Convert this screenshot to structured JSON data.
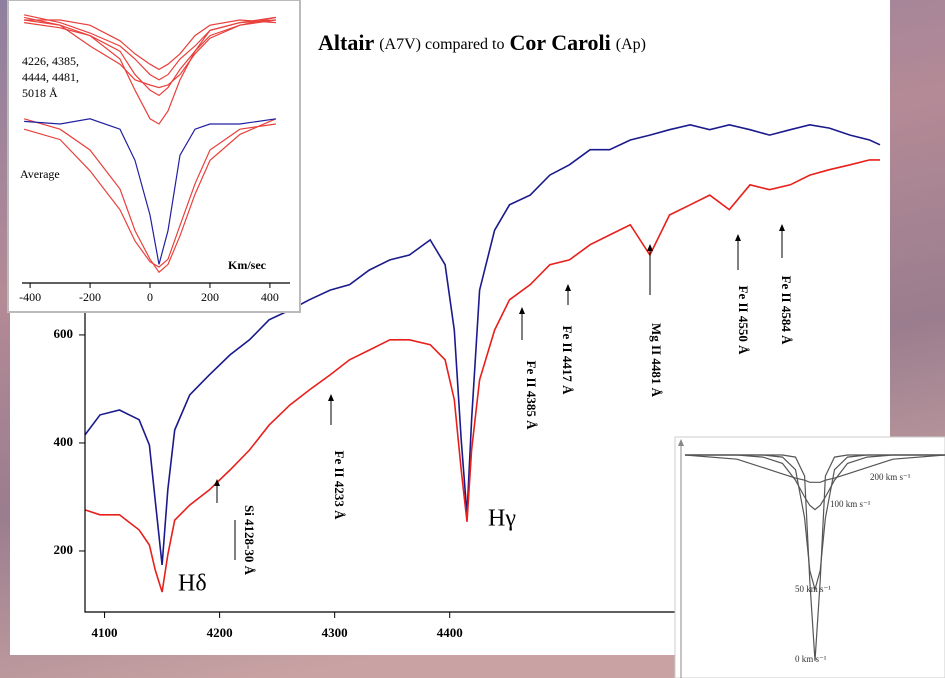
{
  "chart_data": [
    {
      "type": "line",
      "title_parts": [
        "Altair",
        "(A7V) compared to",
        "Cor Caroli",
        "(Ap)"
      ],
      "x": [
        4083,
        4096,
        4113,
        4130,
        4139,
        4144,
        4150,
        4155,
        4161,
        4174,
        4191,
        4209,
        4226,
        4243,
        4261,
        4278,
        4296,
        4313,
        4330,
        4348,
        4365,
        4383,
        4396,
        4404,
        4410,
        4415,
        4419,
        4426,
        4439,
        4452,
        4470,
        4487,
        4504,
        4522,
        4539,
        4557,
        4574,
        4591,
        4609,
        4626,
        4643,
        4661,
        4678,
        4696,
        4713,
        4730,
        4748,
        4765,
        4774
      ],
      "series": [
        {
          "color": "#1a1a8c",
          "values": [
            415,
            452,
            461,
            443,
            396,
            294,
            174,
            313,
            424,
            489,
            526,
            563,
            591,
            628,
            646,
            665,
            683,
            693,
            720,
            739,
            748,
            776,
            730,
            609,
            406,
            267,
            443,
            683,
            794,
            841,
            859,
            896,
            915,
            943,
            943,
            961,
            970,
            980,
            989,
            980,
            989,
            980,
            970,
            980,
            989,
            983,
            970,
            961,
            952
          ]
        },
        {
          "color": "#e8201c",
          "values": [
            276,
            267,
            267,
            239,
            211,
            165,
            124,
            193,
            257,
            285,
            313,
            350,
            387,
            433,
            470,
            498,
            526,
            554,
            572,
            591,
            591,
            582,
            554,
            480,
            350,
            254,
            387,
            517,
            609,
            665,
            693,
            730,
            739,
            767,
            785,
            804,
            748,
            822,
            841,
            859,
            832,
            878,
            869,
            878,
            896,
            906,
            915,
            924,
            924
          ]
        }
      ],
      "xlim": [
        4083,
        4774
      ],
      "ylim": [
        87,
        1035
      ],
      "xticks": [
        4100,
        4200,
        4300,
        4400
      ],
      "yticks": [
        200,
        400,
        600
      ],
      "annotations": [
        "Hδ",
        "Hγ",
        "Si 4128-30 Å",
        "Fe II 4233 Å",
        "Fe II 4385 Å",
        "Fe II 4417 Å",
        "Mg II 4481 Å",
        "Fe II 4550 Å",
        "Fe II 4584 Å"
      ]
    },
    {
      "type": "line",
      "x": [
        -420,
        -300,
        -200,
        -100,
        -50,
        0,
        30,
        60,
        100,
        150,
        200,
        300,
        420
      ],
      "series": [
        {
          "color": "#e8403c",
          "values": [
            1.0,
            0.98,
            0.94,
            0.85,
            0.73,
            0.62,
            0.6,
            0.65,
            0.77,
            0.88,
            0.96,
            0.99,
            1.0
          ]
        },
        {
          "color": "#e8403c",
          "values": [
            0.99,
            0.97,
            0.94,
            0.88,
            0.79,
            0.73,
            0.71,
            0.74,
            0.81,
            0.88,
            0.94,
            0.98,
            1.01
          ]
        },
        {
          "color": "#e8403c",
          "values": [
            1.02,
            0.99,
            0.95,
            0.9,
            0.85,
            0.79,
            0.77,
            0.79,
            0.85,
            0.9,
            0.96,
            0.99,
            1.01
          ]
        },
        {
          "color": "#e8403c",
          "values": [
            1.0,
            1.0,
            0.98,
            0.92,
            0.87,
            0.83,
            0.81,
            0.83,
            0.87,
            0.94,
            0.98,
            1.0,
            0.99
          ]
        },
        {
          "color": "#e8403c",
          "values": [
            1.01,
            0.98,
            0.9,
            0.83,
            0.77,
            0.75,
            0.74,
            0.75,
            0.79,
            0.87,
            0.93,
            0.98,
            1.0
          ]
        },
        {
          "color": "#e8403c",
          "values": [
            0.62,
            0.58,
            0.5,
            0.35,
            0.19,
            0.08,
            0.03,
            0.06,
            0.17,
            0.33,
            0.46,
            0.56,
            0.62
          ]
        },
        {
          "color": "#e8403c",
          "values": [
            0.58,
            0.54,
            0.42,
            0.27,
            0.15,
            0.07,
            0.05,
            0.08,
            0.21,
            0.37,
            0.5,
            0.58,
            0.6
          ]
        },
        {
          "color": "#2020a0",
          "values": [
            0.61,
            0.6,
            0.62,
            0.58,
            0.46,
            0.25,
            0.06,
            0.19,
            0.48,
            0.58,
            0.6,
            0.6,
            0.62
          ]
        }
      ],
      "xlim": [
        -427,
        467
      ],
      "ylim": [
        0,
        1
      ],
      "xticks": [
        -400,
        -200,
        0,
        200,
        400
      ],
      "label_lines": [
        "4226, 4385,",
        "4444, 4481,",
        "5018 Å"
      ],
      "annotations": [
        "Average",
        "Km/sec"
      ]
    },
    {
      "type": "line",
      "x": [
        -1,
        -0.6,
        -0.4,
        -0.25,
        -0.15,
        -0.08,
        -0.04,
        0,
        0.04,
        0.08,
        0.15,
        0.25,
        0.4,
        0.6,
        1
      ],
      "series": [
        {
          "color": "#555555",
          "values": [
            1,
            1,
            1,
            1,
            0.99,
            0.9,
            0.4,
            0.02,
            0.4,
            0.9,
            0.99,
            1,
            1,
            1,
            1
          ]
        },
        {
          "color": "#555555",
          "values": [
            1,
            1,
            1,
            0.99,
            0.93,
            0.7,
            0.45,
            0.36,
            0.45,
            0.7,
            0.93,
            0.99,
            1,
            1,
            1
          ]
        },
        {
          "color": "#555555",
          "values": [
            1,
            1,
            0.99,
            0.96,
            0.88,
            0.8,
            0.76,
            0.74,
            0.76,
            0.8,
            0.88,
            0.96,
            0.99,
            1,
            1
          ]
        },
        {
          "color": "#555555",
          "values": [
            1,
            0.98,
            0.94,
            0.91,
            0.89,
            0.88,
            0.87,
            0.87,
            0.87,
            0.88,
            0.89,
            0.91,
            0.94,
            0.98,
            1
          ]
        }
      ],
      "xlim": [
        -1,
        1
      ],
      "ylim": [
        0,
        1
      ],
      "annotations": [
        "0 km s⁻¹",
        "50 km s⁻¹",
        "100 km s⁻¹",
        "200 km s⁻¹"
      ]
    }
  ]
}
